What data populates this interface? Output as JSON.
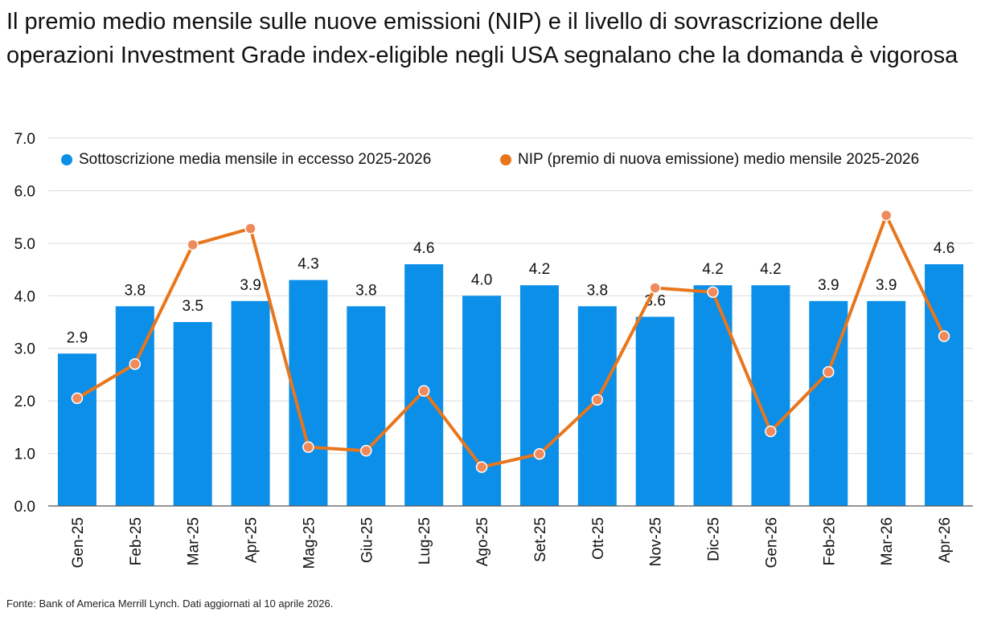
{
  "title": "Il premio medio mensile sulle nuove emissioni (NIP) e il livello di sovrascrizione delle operazioni Investment Grade index-eligible negli USA segnalano che la domanda è vigorosa",
  "source": "Fonte: Bank of America Merrill Lynch. Dati aggiornati al 10 aprile 2026.",
  "colors": {
    "bars": "#0b8fe8",
    "line": "#e8761c",
    "marker_fill": "#f08a5d"
  },
  "chart_data": {
    "type": "bar",
    "categories": [
      "Gen-25",
      "Feb-25",
      "Mar-25",
      "Apr-25",
      "Mag-25",
      "Giu-25",
      "Lug-25",
      "Ago-25",
      "Set-25",
      "Ott-25",
      "Nov-25",
      "Dic-25",
      "Gen-26",
      "Feb-26",
      "Mar-26",
      "Apr-26"
    ],
    "ylim": [
      0,
      7
    ],
    "yticks": [
      "0.0",
      "1.0",
      "2.0",
      "3.0",
      "4.0",
      "5.0",
      "6.0",
      "7.0"
    ],
    "grid": true,
    "legend_position": "top",
    "series": [
      {
        "name": "Sottoscrizione media mensile in eccesso  2025-2026",
        "type": "bar",
        "values": [
          2.9,
          3.8,
          3.5,
          3.9,
          4.3,
          3.8,
          4.6,
          4.0,
          4.2,
          3.8,
          3.6,
          4.2,
          4.2,
          3.9,
          3.9,
          4.6
        ],
        "labels": [
          "2.9",
          "3.8",
          "3.5",
          "3.9",
          "4.3",
          "3.8",
          "4.6",
          "4.0",
          "4.2",
          "3.8",
          "3.6",
          "4.2",
          "4.2",
          "3.9",
          "3.9",
          "4.6"
        ]
      },
      {
        "name": "NIP (premio di nuova emissione) medio mensile 2025-2026",
        "type": "line",
        "values": [
          2.05,
          2.7,
          4.97,
          5.28,
          1.12,
          1.05,
          2.19,
          0.74,
          0.99,
          2.02,
          4.15,
          4.07,
          1.42,
          2.55,
          5.53,
          3.23
        ]
      }
    ]
  }
}
